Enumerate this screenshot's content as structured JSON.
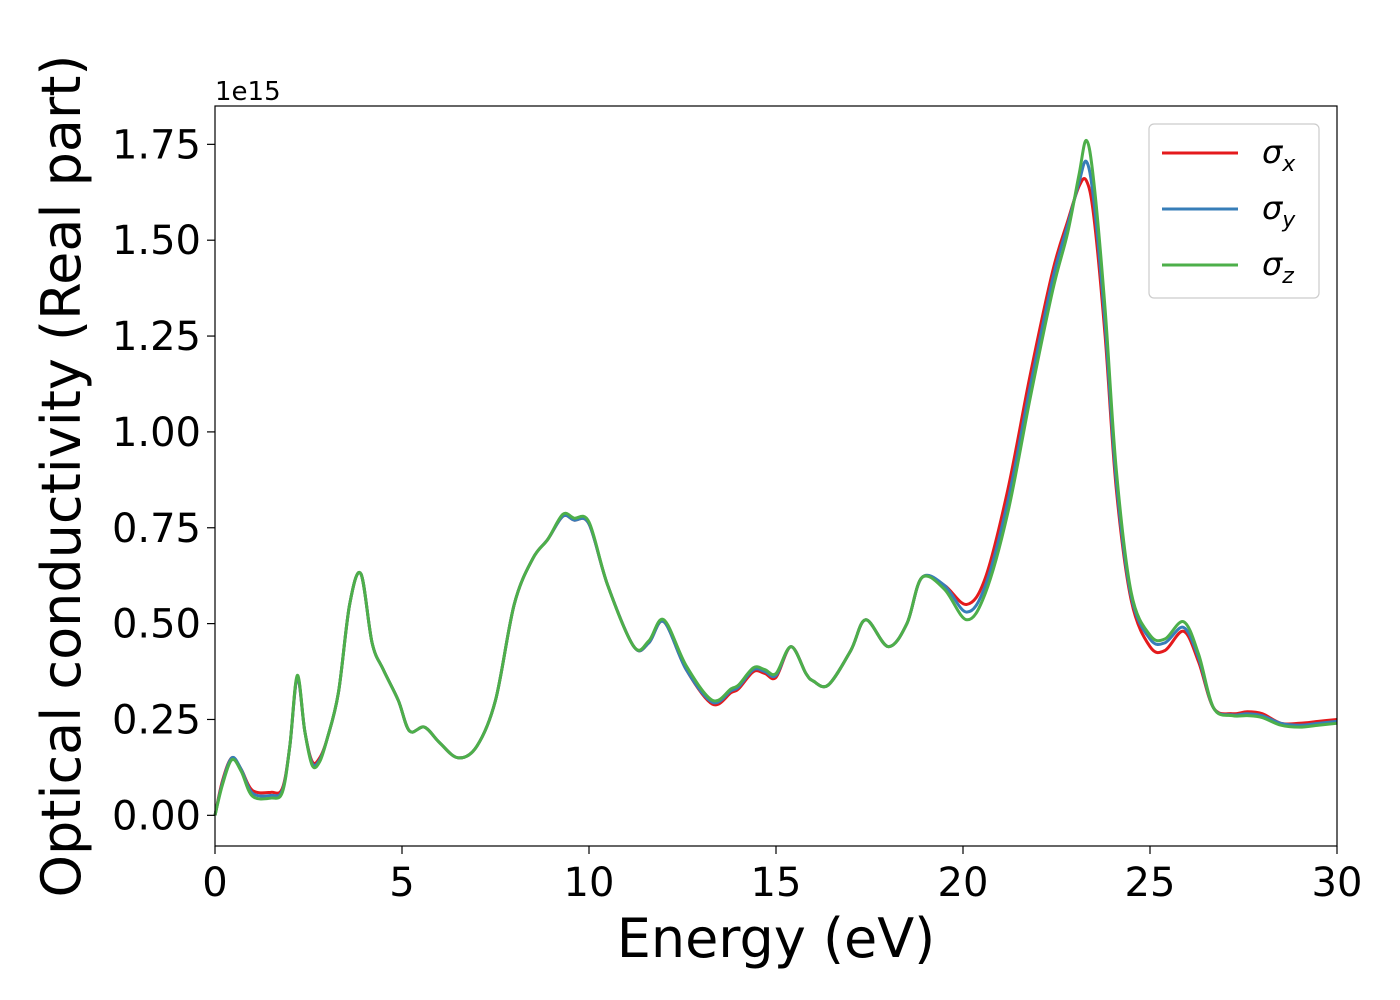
{
  "chart_data": {
    "type": "line",
    "title": "",
    "xlabel": "Energy (eV)",
    "ylabel": "Optical conductivity (Real part)",
    "y_offset_label": "1e15",
    "xlim": [
      0,
      30
    ],
    "ylim": [
      -0.08,
      1.85
    ],
    "x_ticks": [
      0,
      5,
      10,
      15,
      20,
      25,
      30
    ],
    "x_tick_labels": [
      "0",
      "5",
      "10",
      "15",
      "20",
      "25",
      "30"
    ],
    "y_ticks": [
      0,
      0.25,
      0.5,
      0.75,
      1.0,
      1.25,
      1.5,
      1.75
    ],
    "y_tick_labels": [
      "0.00",
      "0.25",
      "0.50",
      "0.75",
      "1.00",
      "1.25",
      "1.50",
      "1.75"
    ],
    "grid": false,
    "legend_position": "top-right",
    "x": [
      0,
      0.2,
      0.45,
      0.7,
      1.0,
      1.5,
      1.8,
      2.0,
      2.2,
      2.4,
      2.6,
      2.8,
      3.0,
      3.3,
      3.6,
      3.9,
      4.2,
      4.5,
      4.9,
      5.2,
      5.6,
      6.0,
      6.5,
      7.0,
      7.5,
      8.0,
      8.5,
      8.9,
      9.3,
      9.6,
      10.0,
      10.5,
      11.2,
      11.6,
      12.0,
      12.6,
      13.3,
      13.8,
      14.0,
      14.4,
      14.7,
      15.0,
      15.4,
      15.8,
      16.0,
      16.4,
      17.0,
      17.4,
      18.0,
      18.5,
      18.9,
      19.5,
      20.1,
      20.6,
      21.2,
      21.8,
      22.4,
      22.8,
      23.1,
      23.3,
      23.5,
      23.8,
      24.1,
      24.5,
      25.0,
      25.4,
      25.9,
      26.3,
      26.7,
      27.2,
      27.6,
      28.0,
      28.5,
      29.0,
      29.5,
      30.0
    ],
    "series": [
      {
        "name": "σx",
        "color": "#e41a1c",
        "values": [
          0.0,
          0.09,
          0.15,
          0.12,
          0.065,
          0.06,
          0.07,
          0.18,
          0.36,
          0.22,
          0.14,
          0.15,
          0.2,
          0.32,
          0.55,
          0.63,
          0.45,
          0.38,
          0.3,
          0.22,
          0.23,
          0.19,
          0.15,
          0.18,
          0.3,
          0.55,
          0.67,
          0.72,
          0.78,
          0.77,
          0.76,
          0.6,
          0.44,
          0.45,
          0.505,
          0.38,
          0.29,
          0.32,
          0.33,
          0.375,
          0.37,
          0.36,
          0.44,
          0.37,
          0.35,
          0.34,
          0.43,
          0.51,
          0.44,
          0.5,
          0.62,
          0.6,
          0.55,
          0.62,
          0.85,
          1.15,
          1.42,
          1.55,
          1.64,
          1.655,
          1.56,
          1.25,
          0.85,
          0.56,
          0.44,
          0.43,
          0.48,
          0.4,
          0.28,
          0.265,
          0.27,
          0.265,
          0.24,
          0.24,
          0.245,
          0.25
        ]
      },
      {
        "name": "σy",
        "color": "#377eb8",
        "values": [
          0.0,
          0.085,
          0.15,
          0.12,
          0.058,
          0.052,
          0.065,
          0.18,
          0.36,
          0.22,
          0.135,
          0.145,
          0.2,
          0.32,
          0.55,
          0.63,
          0.45,
          0.38,
          0.3,
          0.22,
          0.23,
          0.19,
          0.15,
          0.18,
          0.3,
          0.55,
          0.67,
          0.72,
          0.78,
          0.77,
          0.76,
          0.6,
          0.44,
          0.45,
          0.505,
          0.38,
          0.295,
          0.325,
          0.335,
          0.38,
          0.375,
          0.365,
          0.44,
          0.37,
          0.35,
          0.34,
          0.43,
          0.51,
          0.44,
          0.5,
          0.62,
          0.6,
          0.53,
          0.6,
          0.82,
          1.12,
          1.4,
          1.54,
          1.65,
          1.705,
          1.6,
          1.28,
          0.87,
          0.57,
          0.46,
          0.45,
          0.49,
          0.41,
          0.28,
          0.262,
          0.265,
          0.26,
          0.24,
          0.235,
          0.24,
          0.245
        ]
      },
      {
        "name": "σz",
        "color": "#4daf4a",
        "values": [
          0.0,
          0.08,
          0.145,
          0.115,
          0.05,
          0.045,
          0.06,
          0.18,
          0.365,
          0.22,
          0.13,
          0.14,
          0.2,
          0.32,
          0.55,
          0.63,
          0.45,
          0.38,
          0.3,
          0.22,
          0.23,
          0.19,
          0.15,
          0.18,
          0.3,
          0.55,
          0.67,
          0.72,
          0.785,
          0.775,
          0.765,
          0.6,
          0.44,
          0.455,
          0.51,
          0.39,
          0.3,
          0.33,
          0.34,
          0.385,
          0.38,
          0.37,
          0.44,
          0.37,
          0.35,
          0.34,
          0.43,
          0.51,
          0.44,
          0.5,
          0.62,
          0.59,
          0.51,
          0.58,
          0.79,
          1.09,
          1.37,
          1.52,
          1.67,
          1.76,
          1.65,
          1.32,
          0.9,
          0.58,
          0.47,
          0.46,
          0.505,
          0.42,
          0.28,
          0.26,
          0.26,
          0.255,
          0.235,
          0.23,
          0.235,
          0.24
        ]
      }
    ]
  }
}
